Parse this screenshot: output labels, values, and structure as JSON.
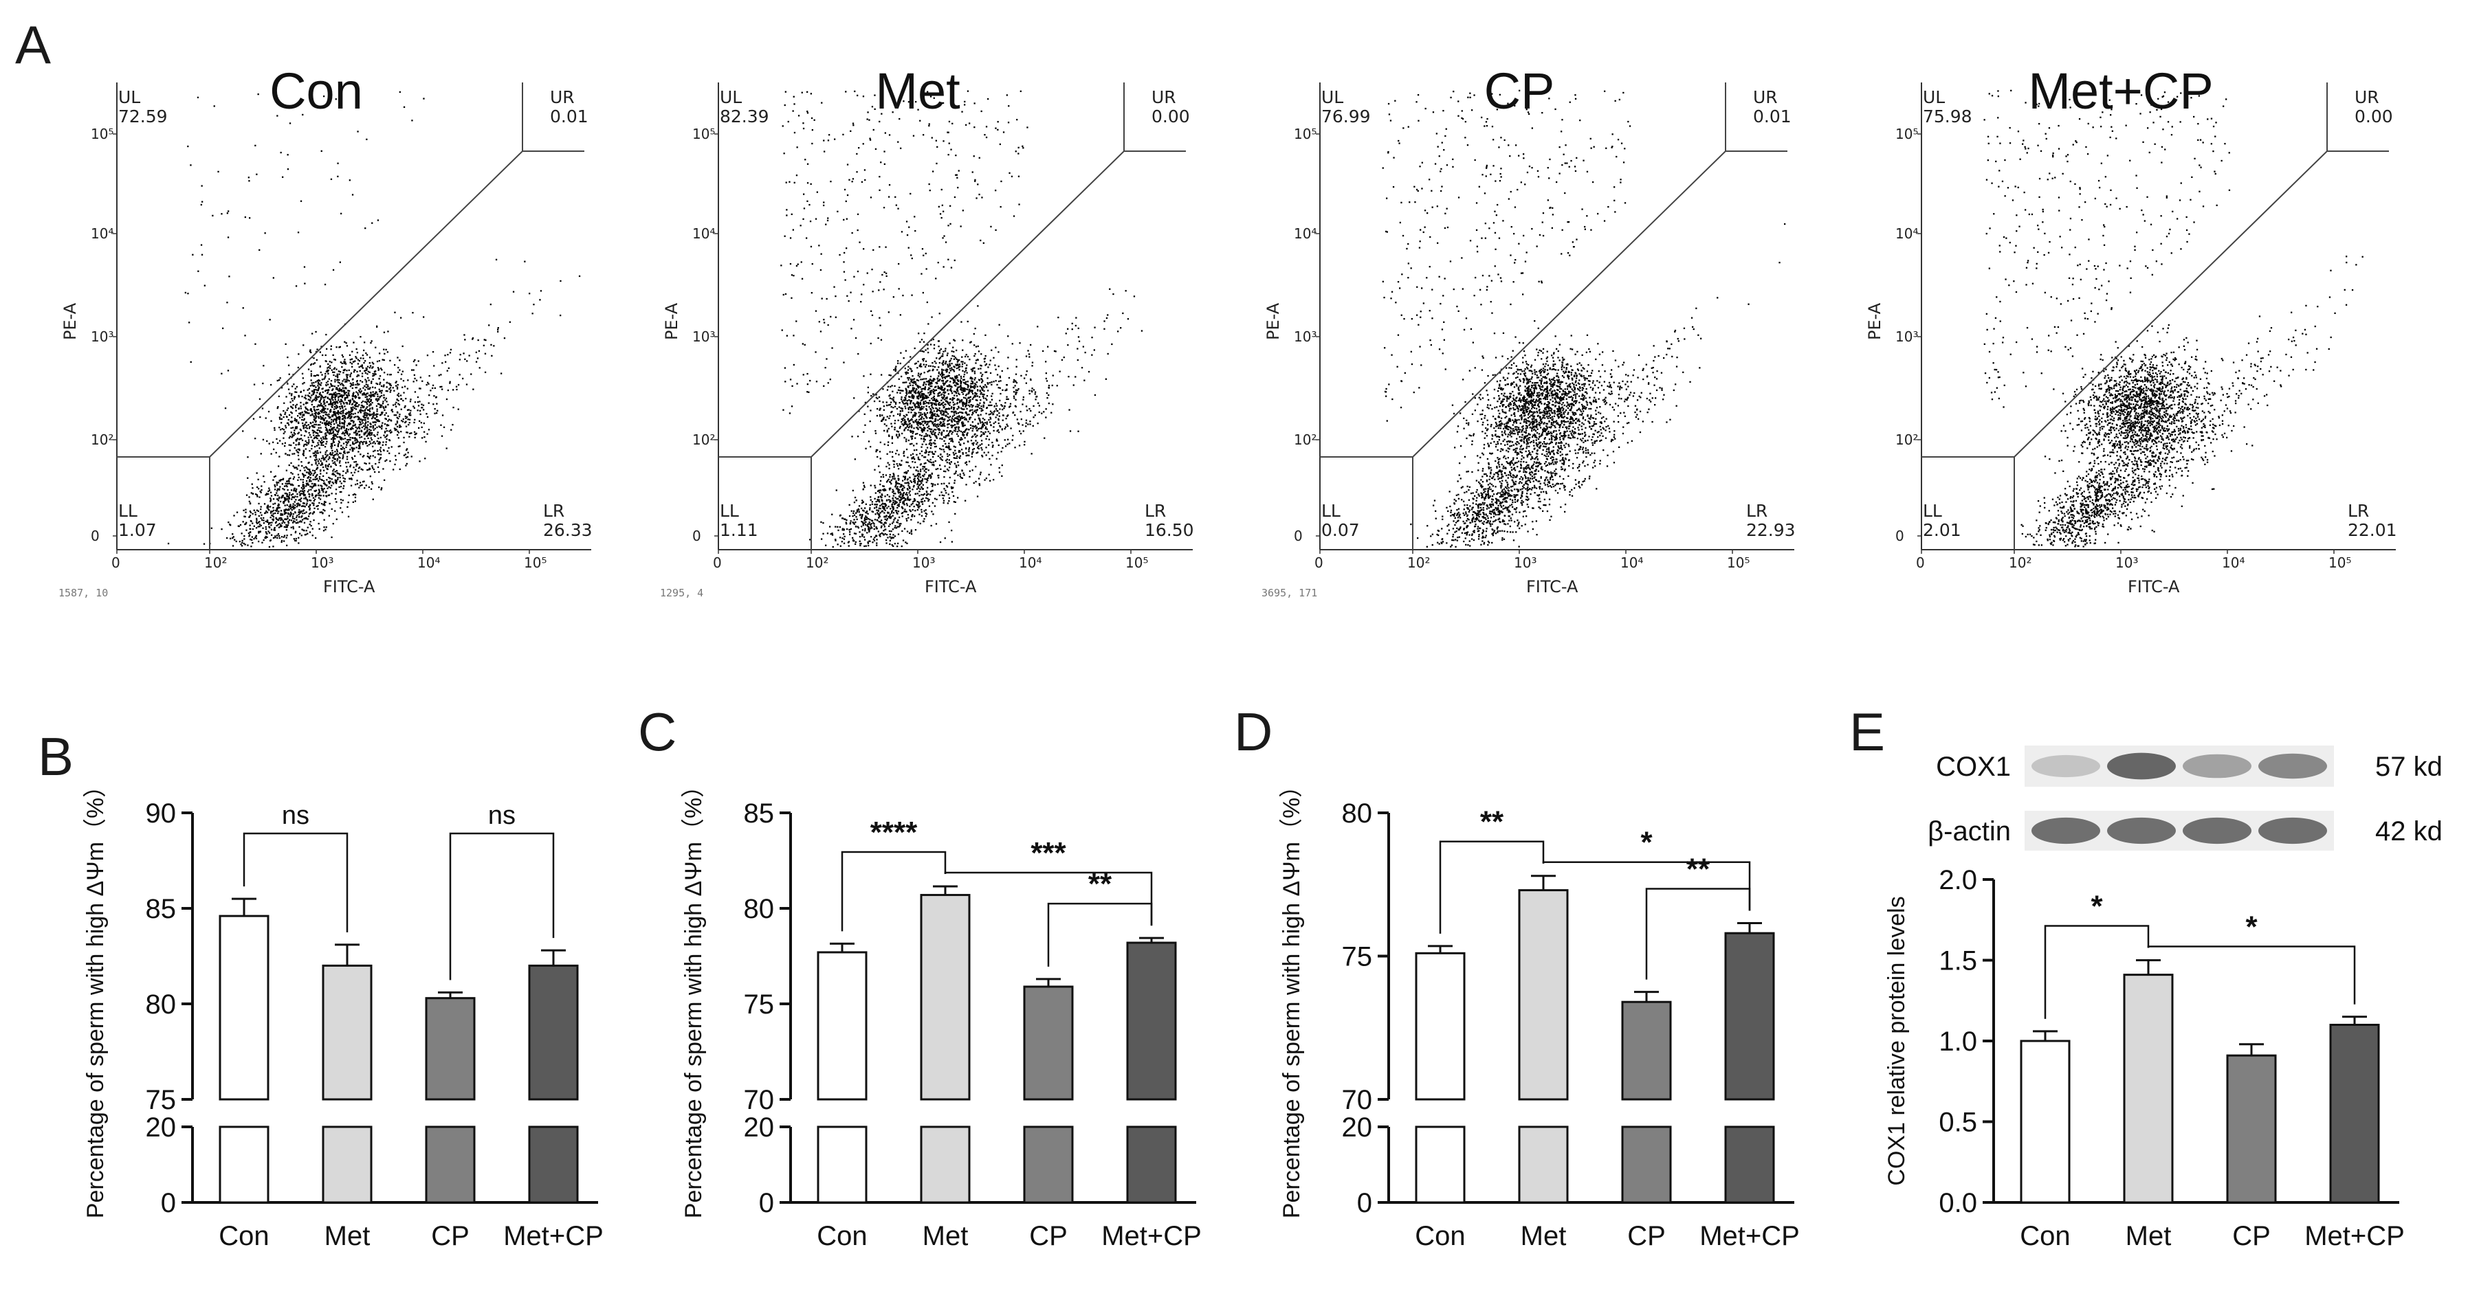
{
  "panel_letters": [
    "A",
    "B",
    "C",
    "D",
    "E"
  ],
  "flow_axis": {
    "xlabel": "FITC-A",
    "ylabel": "PE-A",
    "x_ticks": [
      "0",
      "10²",
      "10³",
      "10⁴",
      "10⁵"
    ],
    "y_ticks": [
      "0",
      "10²",
      "10³",
      "10⁴",
      "10⁵"
    ]
  },
  "flow_panels": [
    {
      "title": "Con",
      "UL": "72.59",
      "UR": "0.01",
      "LL": "1.07",
      "LR": "26.33",
      "footer": "1587, 10"
    },
    {
      "title": "Met",
      "UL": "82.39",
      "UR": "0.00",
      "LL": "1.11",
      "LR": "16.50",
      "footer": "1295, 4"
    },
    {
      "title": "CP",
      "UL": "76.99",
      "UR": "0.01",
      "LL": "0.07",
      "LR": "22.93",
      "footer": "3695, 171"
    },
    {
      "title": "Met+CP",
      "UL": "75.98",
      "UR": "0.00",
      "LL": "2.01",
      "LR": "22.01",
      "footer": ""
    }
  ],
  "quadrant_labels": {
    "UL": "UL",
    "UR": "UR",
    "LL": "LL",
    "LR": "LR"
  },
  "wb": {
    "bands": [
      "COX1",
      "β-actin"
    ],
    "sizes": [
      "57 kd",
      "42 kd"
    ]
  },
  "chart_data": [
    {
      "type": "bar",
      "panel": "B",
      "categories": [
        "Con",
        "Met",
        "CP",
        "Met+CP"
      ],
      "values": [
        84.6,
        82.0,
        80.3,
        82.0
      ],
      "errors": [
        0.9,
        1.1,
        0.3,
        0.8
      ],
      "ylabel": "Percentage of sperm with high ΔΨm（%）",
      "broken_axis": {
        "lower_range": [
          0,
          20
        ],
        "upper_range": [
          75,
          90
        ]
      },
      "y_ticks_upper": [
        "75",
        "80",
        "85",
        "90"
      ],
      "y_ticks_lower": [
        "0",
        "20"
      ],
      "significance": [
        {
          "from": 0,
          "to": 1,
          "label": "ns"
        },
        {
          "from": 2,
          "to": 3,
          "label": "ns"
        }
      ]
    },
    {
      "type": "bar",
      "panel": "C",
      "categories": [
        "Con",
        "Met",
        "CP",
        "Met+CP"
      ],
      "values": [
        77.7,
        80.7,
        75.9,
        78.2
      ],
      "errors": [
        0.45,
        0.45,
        0.4,
        0.25
      ],
      "ylabel": "Percentage of sperm with high ΔΨm（%）",
      "broken_axis": {
        "lower_range": [
          0,
          20
        ],
        "upper_range": [
          70,
          85
        ]
      },
      "y_ticks_upper": [
        "70",
        "75",
        "80",
        "85"
      ],
      "y_ticks_lower": [
        "0",
        "20"
      ],
      "significance": [
        {
          "from": 0,
          "to": 1,
          "label": "****"
        },
        {
          "from": 1,
          "to": 3,
          "label": "***"
        },
        {
          "from": 2,
          "to": 3,
          "label": "**"
        }
      ]
    },
    {
      "type": "bar",
      "panel": "D",
      "categories": [
        "Con",
        "Met",
        "CP",
        "Met+CP"
      ],
      "values": [
        75.1,
        77.3,
        73.4,
        75.8
      ],
      "errors": [
        0.25,
        0.5,
        0.35,
        0.35
      ],
      "ylabel": "Percentage of sperm with high ΔΨm（%）",
      "broken_axis": {
        "lower_range": [
          0,
          20
        ],
        "upper_range": [
          70,
          80
        ]
      },
      "y_ticks_upper": [
        "70",
        "75",
        "80"
      ],
      "y_ticks_lower": [
        "0",
        "20"
      ],
      "significance": [
        {
          "from": 0,
          "to": 1,
          "label": "**"
        },
        {
          "from": 1,
          "to": 3,
          "label": "*"
        },
        {
          "from": 2,
          "to": 3,
          "label": "**"
        }
      ]
    },
    {
      "type": "bar",
      "panel": "E",
      "categories": [
        "Con",
        "Met",
        "CP",
        "Met+CP"
      ],
      "values": [
        1.0,
        1.41,
        0.91,
        1.1
      ],
      "errors": [
        0.06,
        0.09,
        0.07,
        0.05
      ],
      "ylabel": "COX1 relative protein levels",
      "ylim": [
        0,
        2.0
      ],
      "y_ticks": [
        "0.0",
        "0.5",
        "1.0",
        "1.5",
        "2.0"
      ],
      "significance": [
        {
          "from": 0,
          "to": 1,
          "label": "*"
        },
        {
          "from": 1,
          "to": 3,
          "label": "*"
        }
      ]
    }
  ],
  "bar_colors": [
    "#ffffff",
    "#d9d9d9",
    "#808080",
    "#5a5a5a"
  ]
}
